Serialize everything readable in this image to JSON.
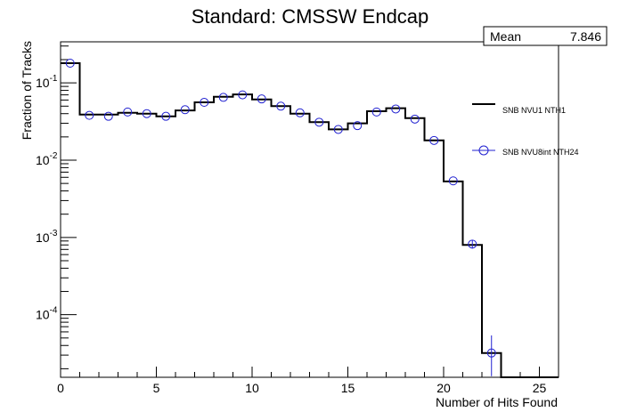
{
  "chart_data": {
    "type": "line",
    "title": "Standard: CMSSW Endcap",
    "xlabel": "Number of Hits Found",
    "ylabel": "Fraction of Tracks",
    "xlim": [
      0,
      26
    ],
    "ylim": [
      1.55e-05,
      0.34
    ],
    "yscale": "log",
    "grid": false,
    "legend_position": "right",
    "x_ticks": [
      {
        "value": 0,
        "label": "0"
      },
      {
        "value": 5,
        "label": "5"
      },
      {
        "value": 10,
        "label": "10"
      },
      {
        "value": 15,
        "label": "15"
      },
      {
        "value": 20,
        "label": "20"
      },
      {
        "value": 25,
        "label": "25"
      }
    ],
    "y_ticks": [
      {
        "value": 0.1,
        "base": "10",
        "exp": "-1"
      },
      {
        "value": 0.01,
        "base": "10",
        "exp": "-2"
      },
      {
        "value": 0.001,
        "base": "10",
        "exp": "-3"
      },
      {
        "value": 0.0001,
        "base": "10",
        "exp": "-4"
      }
    ],
    "bin_edges": [
      0,
      1,
      2,
      3,
      4,
      5,
      6,
      7,
      8,
      9,
      10,
      11,
      12,
      13,
      14,
      15,
      16,
      17,
      18,
      19,
      20,
      21,
      22,
      23,
      24,
      25,
      26
    ],
    "series": [
      {
        "name": "SNB NVU1 NTH1",
        "style": "histogram",
        "color": "#000000",
        "values": [
          0.18,
          0.039,
          0.039,
          0.041,
          0.04,
          0.037,
          0.044,
          0.056,
          0.066,
          0.071,
          0.061,
          0.05,
          0.04,
          0.031,
          0.025,
          0.03,
          0.043,
          0.047,
          0.035,
          0.018,
          0.0053,
          0.0008,
          3.2e-05,
          1.55e-05,
          1.55e-05,
          1.55e-05
        ]
      },
      {
        "name": "SNB NVU8int NTH24",
        "style": "markers",
        "color": "#2020d0",
        "values": [
          0.18,
          0.038,
          0.037,
          0.042,
          0.04,
          0.037,
          0.045,
          0.056,
          0.065,
          0.07,
          0.062,
          0.05,
          0.041,
          0.031,
          0.025,
          0.028,
          0.042,
          0.046,
          0.034,
          0.018,
          0.0054,
          0.00082,
          3.2e-05,
          null,
          null,
          null
        ],
        "error_low": [
          null,
          null,
          null,
          null,
          null,
          null,
          null,
          null,
          null,
          null,
          null,
          null,
          null,
          null,
          null,
          null,
          null,
          null,
          null,
          null,
          null,
          0.00072,
          1.6e-05,
          null,
          null,
          null
        ],
        "error_high": [
          null,
          null,
          null,
          null,
          null,
          null,
          null,
          null,
          null,
          null,
          null,
          null,
          null,
          null,
          null,
          null,
          null,
          null,
          null,
          null,
          null,
          0.00093,
          5.4e-05,
          null,
          null,
          null
        ]
      }
    ],
    "stats": {
      "label": "Mean",
      "value": "7.846"
    }
  }
}
